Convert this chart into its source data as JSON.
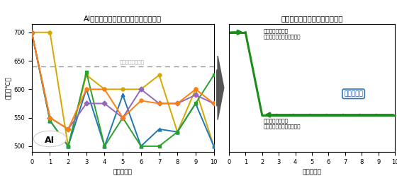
{
  "title_left": "AIが発見した優れたパターン（抜粋）",
  "title_right": "材料研究者がエッセンスを抽出",
  "xlabel": "時間（分）",
  "ylabel": "温度（℃）",
  "xlim": [
    0,
    10
  ],
  "ylim": [
    490,
    715
  ],
  "yticks": [
    500,
    550,
    600,
    650,
    700
  ],
  "xticks": [
    0,
    1,
    2,
    3,
    4,
    5,
    6,
    7,
    8,
    9,
    10
  ],
  "bg_color": "#ffffff",
  "dashed_line_y": 640,
  "dashed_label": "従来の等温熱処理",
  "lines_left": [
    {
      "x": [
        0,
        1,
        2,
        3,
        4,
        5,
        6,
        7,
        8,
        9,
        10
      ],
      "y": [
        700,
        700,
        500,
        625,
        600,
        600,
        600,
        625,
        525,
        600,
        500
      ],
      "color": "#d4a800",
      "marker": "o"
    },
    {
      "x": [
        0,
        1,
        2,
        3,
        4,
        5,
        6,
        7,
        8,
        9,
        10
      ],
      "y": [
        700,
        545,
        500,
        600,
        500,
        590,
        500,
        530,
        525,
        575,
        500
      ],
      "color": "#1f77b4",
      "marker": "^"
    },
    {
      "x": [
        0,
        1,
        2,
        3,
        4,
        5,
        6,
        7,
        8,
        9,
        10
      ],
      "y": [
        700,
        545,
        500,
        630,
        500,
        550,
        500,
        500,
        525,
        575,
        625
      ],
      "color": "#2ca02c",
      "marker": "s"
    },
    {
      "x": [
        0,
        1,
        2,
        3,
        4,
        5,
        6,
        7,
        8,
        9,
        10
      ],
      "y": [
        700,
        550,
        530,
        575,
        575,
        550,
        600,
        575,
        575,
        590,
        575
      ],
      "color": "#9467bd",
      "marker": "D"
    },
    {
      "x": [
        0,
        1,
        2,
        3,
        4,
        5,
        6,
        7,
        8,
        9,
        10
      ],
      "y": [
        700,
        550,
        530,
        600,
        600,
        550,
        580,
        575,
        575,
        600,
        575
      ],
      "color": "#ff7f0e",
      "marker": "o"
    }
  ],
  "right_line_color": "#1a8c1a",
  "label_stage1_line1": "一段：高温短時間",
  "label_stage1_line2": "最適サイズまで析出物成長",
  "label_stage2_line1": "二段：低温長時間",
  "label_stage2_line2": "成長を抑えつつ体積率向上",
  "label_researcher": "材料研究者",
  "label_ai": "AI"
}
